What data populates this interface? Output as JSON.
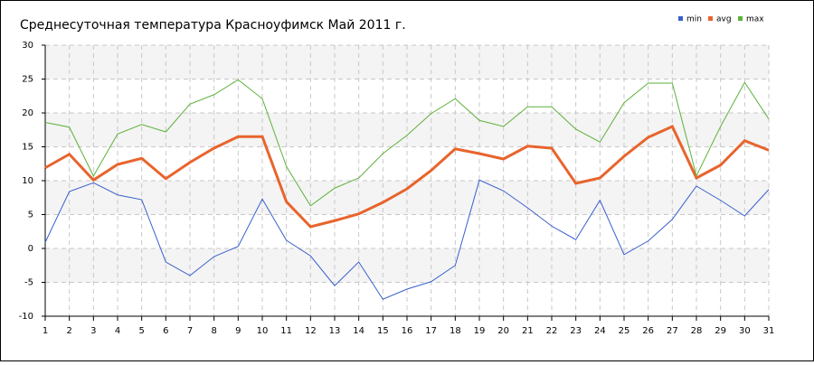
{
  "chart_data": {
    "type": "line",
    "title": "Среднесуточная температура Красноуфимск  Май 2011 г.",
    "x": [
      1,
      2,
      3,
      4,
      5,
      6,
      7,
      8,
      9,
      10,
      11,
      12,
      13,
      14,
      15,
      16,
      17,
      18,
      19,
      20,
      21,
      22,
      23,
      24,
      25,
      26,
      27,
      28,
      29,
      30,
      31
    ],
    "xlim": [
      1,
      31
    ],
    "xticks": [
      1,
      2,
      3,
      4,
      5,
      6,
      7,
      8,
      9,
      10,
      11,
      12,
      13,
      14,
      15,
      16,
      17,
      18,
      19,
      20,
      21,
      22,
      23,
      24,
      25,
      26,
      27,
      28,
      29,
      30,
      31
    ],
    "ylim": [
      -10,
      30
    ],
    "yticks": [
      -10,
      -5,
      0,
      5,
      10,
      15,
      20,
      25,
      30
    ],
    "grid": true,
    "legend": "top-right",
    "series": [
      {
        "name": "min",
        "color": "#3a5fcd",
        "values": [
          0.9,
          8.4,
          9.7,
          7.9,
          7.2,
          -2.0,
          -4.0,
          -1.2,
          0.3,
          7.3,
          1.2,
          -1.1,
          -5.5,
          -2.0,
          -7.5,
          -6.0,
          -4.9,
          -2.5,
          10.1,
          8.5,
          6.0,
          3.3,
          1.3,
          7.1,
          -0.9,
          1.1,
          4.3,
          9.2,
          7.1,
          4.8,
          8.7
        ]
      },
      {
        "name": "avg",
        "color": "#e8642c",
        "values": [
          11.9,
          13.9,
          10.1,
          12.4,
          13.3,
          10.3,
          12.7,
          14.8,
          16.5,
          16.5,
          6.9,
          3.2,
          4.1,
          5.1,
          6.8,
          8.8,
          11.5,
          14.7,
          14.0,
          13.2,
          15.1,
          14.8,
          9.6,
          10.4,
          13.6,
          16.4,
          18.0,
          10.4,
          12.3,
          15.9,
          14.5
        ]
      },
      {
        "name": "max",
        "color": "#5db13a",
        "values": [
          18.6,
          17.9,
          10.7,
          16.9,
          18.3,
          17.2,
          21.3,
          22.7,
          24.9,
          22.1,
          12.1,
          6.3,
          8.9,
          10.4,
          14.0,
          16.7,
          19.9,
          22.1,
          18.9,
          18.0,
          20.9,
          20.9,
          17.6,
          15.7,
          21.5,
          24.4,
          24.4,
          10.7,
          18.0,
          24.5,
          19.1
        ]
      }
    ]
  }
}
